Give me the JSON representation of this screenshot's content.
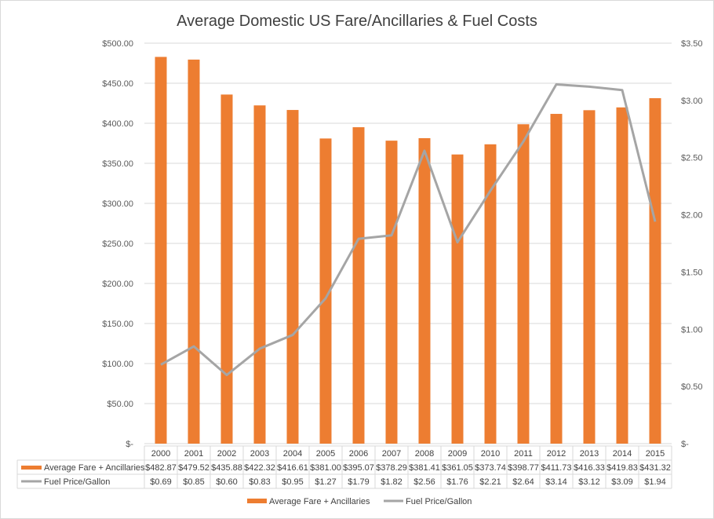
{
  "chart_data": {
    "type": "bar+line",
    "title": "Average Domestic US Fare/Ancillaries & Fuel Costs",
    "categories": [
      "2000",
      "2001",
      "2002",
      "2003",
      "2004",
      "2005",
      "2006",
      "2007",
      "2008",
      "2009",
      "2010",
      "2011",
      "2012",
      "2013",
      "2014",
      "2015"
    ],
    "series": [
      {
        "name": "Average Fare + Ancillaries",
        "type": "bar",
        "axis": "left",
        "color": "#ed7d31",
        "values": [
          482.87,
          479.52,
          435.88,
          422.32,
          416.61,
          381.0,
          395.07,
          378.29,
          381.41,
          361.05,
          373.74,
          398.77,
          411.73,
          416.33,
          419.83,
          431.32
        ],
        "labels": [
          "$482.87",
          "$479.52",
          "$435.88",
          "$422.32",
          "$416.61",
          "$381.00",
          "$395.07",
          "$378.29",
          "$381.41",
          "$361.05",
          "$373.74",
          "$398.77",
          "$411.73",
          "$416.33",
          "$419.83",
          "$431.32"
        ]
      },
      {
        "name": "Fuel Price/Gallon",
        "type": "line",
        "axis": "right",
        "color": "#a5a5a5",
        "values": [
          0.69,
          0.85,
          0.6,
          0.83,
          0.95,
          1.27,
          1.79,
          1.82,
          2.56,
          1.76,
          2.21,
          2.64,
          3.14,
          3.12,
          3.09,
          1.94
        ],
        "labels": [
          "$0.69",
          "$0.85",
          "$0.60",
          "$0.83",
          "$0.95",
          "$1.27",
          "$1.79",
          "$1.82",
          "$2.56",
          "$1.76",
          "$2.21",
          "$2.64",
          "$3.14",
          "$3.12",
          "$3.09",
          "$1.94"
        ]
      }
    ],
    "left_axis": {
      "ylim": [
        0,
        500
      ],
      "ticks": [
        "$-",
        "$50.00",
        "$100.00",
        "$150.00",
        "$200.00",
        "$250.00",
        "$300.00",
        "$350.00",
        "$400.00",
        "$450.00",
        "$500.00"
      ]
    },
    "right_axis": {
      "ylim": [
        0,
        3.5
      ],
      "ticks": [
        "$-",
        "$0.50",
        "$1.00",
        "$1.50",
        "$2.00",
        "$2.50",
        "$3.00",
        "$3.50"
      ]
    },
    "grid": true,
    "data_table": true,
    "legend": "bottom"
  }
}
